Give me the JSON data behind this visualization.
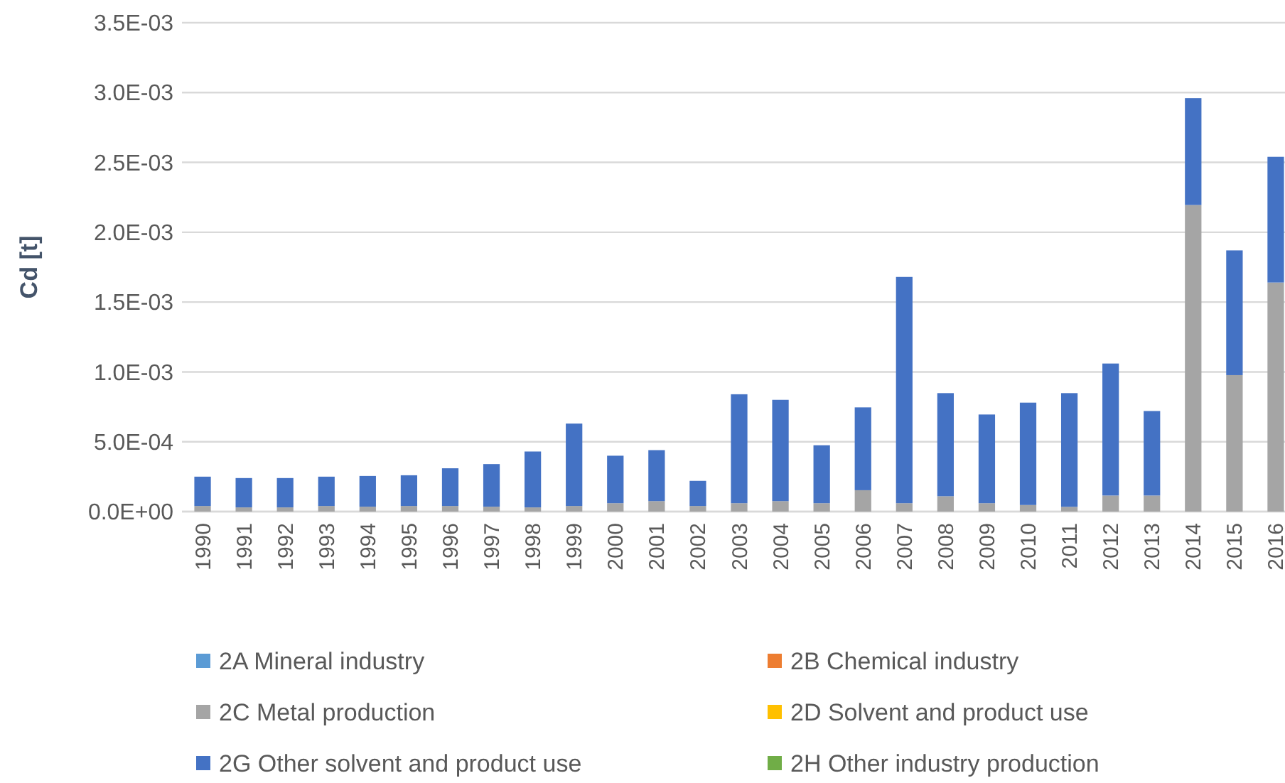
{
  "chart_data": {
    "type": "bar",
    "stacked": true,
    "ylabel": "Cd [t]",
    "categories": [
      "1990",
      "1991",
      "1992",
      "1993",
      "1994",
      "1995",
      "1996",
      "1997",
      "1998",
      "1999",
      "2000",
      "2001",
      "2002",
      "2003",
      "2004",
      "2005",
      "2006",
      "2007",
      "2008",
      "2009",
      "2010",
      "2011",
      "2012",
      "2013",
      "2014",
      "2015",
      "2016"
    ],
    "series": [
      {
        "name": "2A Mineral industry",
        "color": "#5b9bd5",
        "values": [
          0,
          0,
          0,
          0,
          0,
          0,
          0,
          0,
          0,
          0,
          0,
          0,
          0,
          0,
          0,
          0,
          0,
          0,
          0,
          0,
          0,
          0,
          0,
          0,
          0,
          0,
          0
        ]
      },
      {
        "name": "2B Chemical industry",
        "color": "#ed7d31",
        "values": [
          0,
          0,
          0,
          0,
          0,
          0,
          0,
          0,
          0,
          0,
          0,
          0,
          0,
          0,
          0,
          0,
          0,
          0,
          0,
          0,
          0,
          0,
          0,
          0,
          0,
          0,
          0
        ]
      },
      {
        "name": "2C Metal production",
        "color": "#a5a5a5",
        "values": [
          4e-05,
          3e-05,
          3e-05,
          4e-05,
          3.5e-05,
          4e-05,
          4e-05,
          3.5e-05,
          3e-05,
          4e-05,
          6e-05,
          7.5e-05,
          4e-05,
          6e-05,
          7.5e-05,
          6e-05,
          0.000153,
          6e-05,
          0.00011,
          6e-05,
          4.7e-05,
          3.4e-05,
          0.000115,
          0.000115,
          0.002195,
          0.000977,
          0.00164
        ]
      },
      {
        "name": "2D Solvent and product use",
        "color": "#ffc000",
        "values": [
          0,
          0,
          0,
          0,
          0,
          0,
          0,
          0,
          0,
          0,
          0,
          0,
          0,
          0,
          0,
          0,
          0,
          0,
          0,
          0,
          0,
          0,
          0,
          0,
          0,
          0,
          0
        ]
      },
      {
        "name": "2G Other solvent and product use",
        "color": "#4472c4",
        "values": [
          0.00021,
          0.00021,
          0.00021,
          0.00021,
          0.00022,
          0.00022,
          0.00027,
          0.000305,
          0.0004,
          0.00059,
          0.00034,
          0.000365,
          0.00018,
          0.00078,
          0.000725,
          0.000415,
          0.000593,
          0.00162,
          0.000738,
          0.000635,
          0.000733,
          0.000814,
          0.000945,
          0.000605,
          0.000765,
          0.000893,
          0.0009
        ]
      },
      {
        "name": "2H Other industry production",
        "color": "#70ad47",
        "values": [
          0,
          0,
          0,
          0,
          0,
          0,
          0,
          0,
          0,
          0,
          0,
          0,
          0,
          0,
          0,
          0,
          0,
          0,
          0,
          0,
          0,
          0,
          0,
          0,
          0,
          0,
          0
        ]
      }
    ],
    "ylim": [
      0,
      0.0035
    ],
    "yticks": [
      {
        "value": 0,
        "label": "0.0E+00"
      },
      {
        "value": 0.0005,
        "label": "5.0E-04"
      },
      {
        "value": 0.001,
        "label": "1.0E-03"
      },
      {
        "value": 0.0015,
        "label": "1.5E-03"
      },
      {
        "value": 0.002,
        "label": "2.0E-03"
      },
      {
        "value": 0.0025,
        "label": "2.5E-03"
      },
      {
        "value": 0.003,
        "label": "3.0E-03"
      },
      {
        "value": 0.0035,
        "label": "3.5E-03"
      }
    ],
    "grid": "y",
    "legend": "bottom"
  }
}
